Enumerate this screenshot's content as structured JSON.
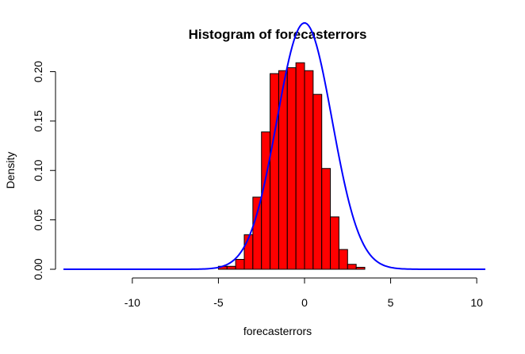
{
  "chart_data": {
    "type": "bar",
    "title": "Histogram of forecasterrors",
    "xlabel": "forecasterrors",
    "ylabel": "Density",
    "xlim": [
      -14,
      10.5
    ],
    "ylim": [
      0,
      0.21
    ],
    "x_ticks": [
      -10,
      -5,
      0,
      5,
      10
    ],
    "x_tick_labels": [
      "-10",
      "-5",
      "0",
      "5",
      "10"
    ],
    "y_ticks": [
      0.0,
      0.05,
      0.1,
      0.15,
      0.2
    ],
    "y_tick_labels": [
      "0.00",
      "0.05",
      "0.10",
      "0.15",
      "0.20"
    ],
    "grid": false,
    "legend": "none",
    "bar_color": "#ff0000",
    "bar_edge_color": "#000000",
    "curve_color": "#0000ff",
    "bins": [
      {
        "start": -14.0,
        "end": -13.5,
        "density": 0.0
      },
      {
        "start": -5.0,
        "end": -4.5,
        "density": 0.003
      },
      {
        "start": -4.5,
        "end": -4.0,
        "density": 0.003
      },
      {
        "start": -4.0,
        "end": -3.5,
        "density": 0.01
      },
      {
        "start": -3.5,
        "end": -3.0,
        "density": 0.035
      },
      {
        "start": -3.0,
        "end": -2.5,
        "density": 0.073
      },
      {
        "start": -2.5,
        "end": -2.0,
        "density": 0.139
      },
      {
        "start": -2.0,
        "end": -1.5,
        "density": 0.198
      },
      {
        "start": -1.5,
        "end": -1.0,
        "density": 0.201
      },
      {
        "start": -1.0,
        "end": -0.5,
        "density": 0.204
      },
      {
        "start": -0.5,
        "end": 0.0,
        "density": 0.209
      },
      {
        "start": 0.0,
        "end": 0.5,
        "density": 0.201
      },
      {
        "start": 0.5,
        "end": 1.0,
        "density": 0.177
      },
      {
        "start": 1.0,
        "end": 1.5,
        "density": 0.102
      },
      {
        "start": 1.5,
        "end": 2.0,
        "density": 0.053
      },
      {
        "start": 2.0,
        "end": 2.5,
        "density": 0.02
      },
      {
        "start": 2.5,
        "end": 3.0,
        "density": 0.005
      },
      {
        "start": 3.0,
        "end": 3.5,
        "density": 0.002
      },
      {
        "start": 10.0,
        "end": 10.5,
        "density": 0.0
      }
    ],
    "normal_curve": {
      "mean": 0.0,
      "sd": 1.6,
      "x_range": [
        -14,
        10.5
      ]
    }
  }
}
